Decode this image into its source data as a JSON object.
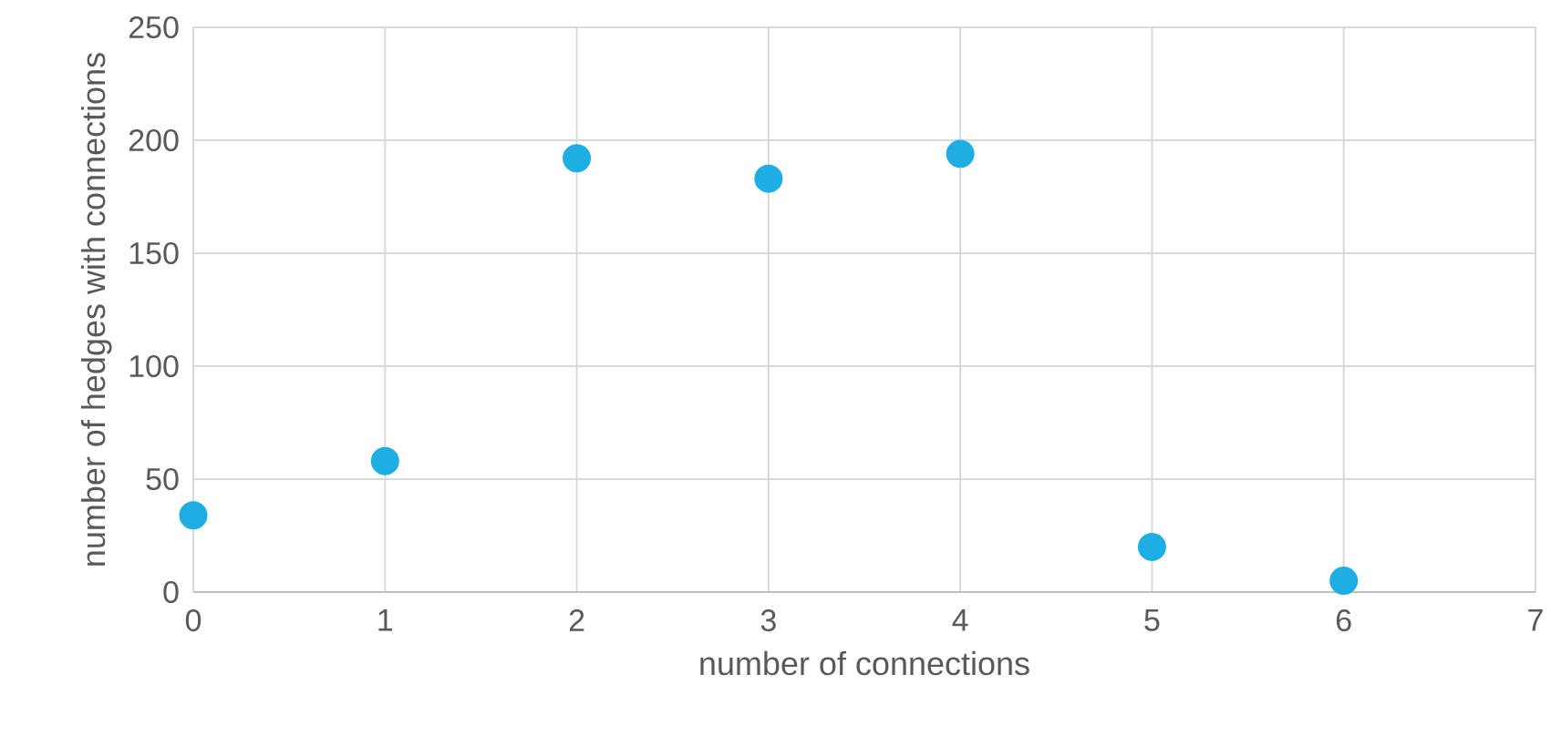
{
  "chart_data": {
    "type": "scatter",
    "xlabel": "number of connections",
    "ylabel": "number of hedges with connections",
    "x": [
      0,
      1,
      2,
      3,
      4,
      5,
      6
    ],
    "values": [
      34,
      58,
      192,
      183,
      194,
      20,
      5
    ],
    "color": "#1eaee4",
    "xlim": [
      0,
      7
    ],
    "ylim": [
      0,
      250
    ],
    "xticks": [
      0,
      1,
      2,
      3,
      4,
      5,
      6,
      7
    ],
    "yticks": [
      0,
      50,
      100,
      150,
      200,
      250
    ],
    "grid": true,
    "marker": "circle"
  }
}
